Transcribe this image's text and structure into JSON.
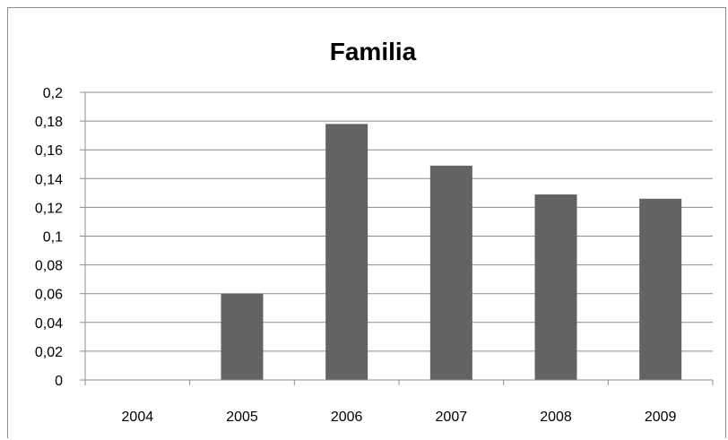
{
  "chart_data": {
    "type": "bar",
    "title": "Familia",
    "xlabel": "",
    "ylabel": "",
    "categories": [
      "2004",
      "2005",
      "2006",
      "2007",
      "2008",
      "2009"
    ],
    "values": [
      0,
      0.06,
      0.178,
      0.149,
      0.129,
      0.126
    ],
    "ylim": [
      0,
      0.2
    ],
    "yticks": [
      "0",
      "0,02",
      "0,04",
      "0,06",
      "0,08",
      "0,1",
      "0,12",
      "0,14",
      "0,16",
      "0,18",
      "0,2"
    ],
    "grid": true,
    "legend": "none",
    "colors": {
      "bar": "#636363",
      "grid": "#8c8c8c",
      "axis": "#8c8c8c"
    }
  }
}
